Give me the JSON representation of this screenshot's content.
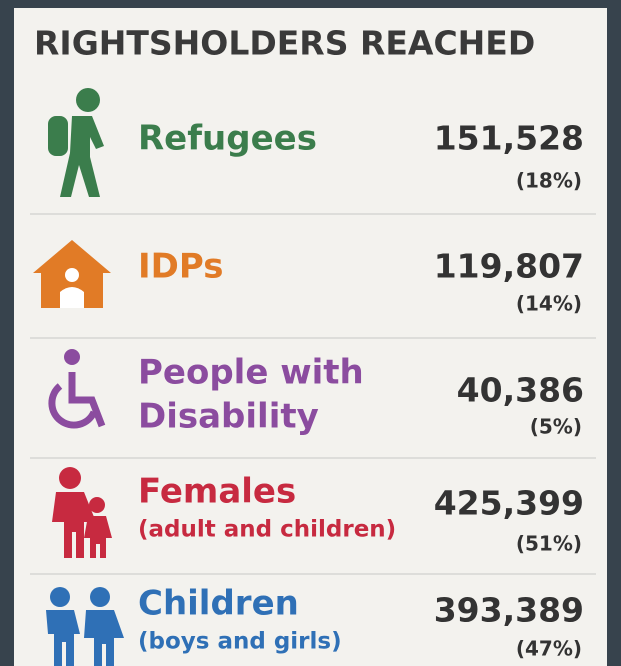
{
  "header": {
    "title": "RIGHTSHOLDERS REACHED"
  },
  "rows": [
    {
      "label_lines": [
        "Refugees"
      ],
      "sublabel": null,
      "value": "151,528",
      "percent": "(18%)",
      "color": "#3b7d4c"
    },
    {
      "label_lines": [
        "IDPs"
      ],
      "sublabel": null,
      "value": "119,807",
      "percent": "(14%)",
      "color": "#e17b26"
    },
    {
      "label_lines": [
        "People with",
        "Disability"
      ],
      "sublabel": null,
      "value": "40,386",
      "percent": "(5%)",
      "color": "#8b4c9f"
    },
    {
      "label_lines": [
        "Females"
      ],
      "sublabel": "(adult and children)",
      "value": "425,399",
      "percent": "(51%)",
      "color": "#c72a40"
    },
    {
      "label_lines": [
        "Children"
      ],
      "sublabel": "(boys and girls)",
      "value": "393,389",
      "percent": "(47%)",
      "color": "#2f70b6"
    }
  ]
}
